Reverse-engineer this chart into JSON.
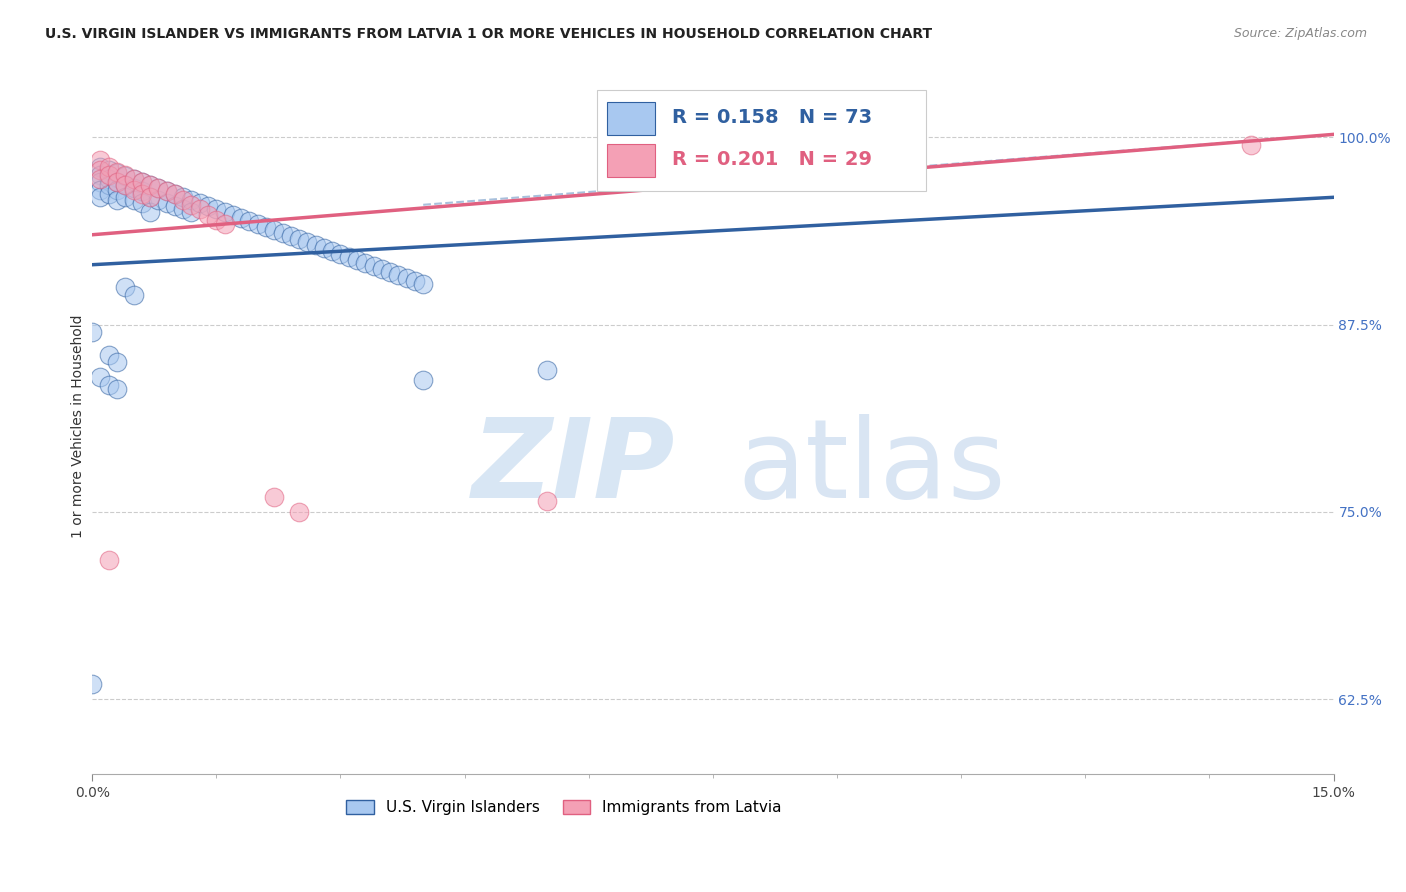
{
  "title": "U.S. VIRGIN ISLANDER VS IMMIGRANTS FROM LATVIA 1 OR MORE VEHICLES IN HOUSEHOLD CORRELATION CHART",
  "source": "Source: ZipAtlas.com",
  "ylabel": "1 or more Vehicles in Household",
  "ytick_labels": [
    "100.0%",
    "87.5%",
    "75.0%",
    "62.5%"
  ],
  "ytick_values": [
    1.0,
    0.875,
    0.75,
    0.625
  ],
  "xlim": [
    0.0,
    0.15
  ],
  "ylim": [
    0.575,
    1.04
  ],
  "color_blue": "#A8C8F0",
  "color_pink": "#F4A0B5",
  "line_color_blue": "#3060A0",
  "line_color_pink": "#E06080",
  "line_color_dashed": "#A8C0DC",
  "watermark_zip_color": "#C8DCF0",
  "watermark_atlas_color": "#C0D4EC",
  "blue_x": [
    0.001,
    0.001,
    0.001,
    0.001,
    0.001,
    0.002,
    0.002,
    0.002,
    0.002,
    0.003,
    0.003,
    0.003,
    0.003,
    0.004,
    0.004,
    0.004,
    0.005,
    0.005,
    0.005,
    0.006,
    0.006,
    0.006,
    0.007,
    0.007,
    0.007,
    0.008,
    0.008,
    0.009,
    0.009,
    0.01,
    0.01,
    0.011,
    0.011,
    0.012,
    0.012,
    0.013,
    0.014,
    0.015,
    0.016,
    0.017,
    0.018,
    0.019,
    0.02,
    0.021,
    0.022,
    0.023,
    0.024,
    0.025,
    0.026,
    0.027,
    0.028,
    0.029,
    0.03,
    0.031,
    0.032,
    0.033,
    0.034,
    0.035,
    0.036,
    0.037,
    0.038,
    0.039,
    0.04,
    0.001,
    0.002,
    0.003,
    0.0,
    0.0,
    0.055,
    0.04,
    0.002,
    0.003,
    0.004,
    0.005
  ],
  "blue_y": [
    0.98,
    0.975,
    0.97,
    0.965,
    0.96,
    0.978,
    0.972,
    0.968,
    0.962,
    0.976,
    0.97,
    0.965,
    0.958,
    0.974,
    0.968,
    0.96,
    0.972,
    0.966,
    0.958,
    0.97,
    0.964,
    0.956,
    0.968,
    0.96,
    0.95,
    0.966,
    0.958,
    0.964,
    0.956,
    0.962,
    0.954,
    0.96,
    0.952,
    0.958,
    0.95,
    0.956,
    0.954,
    0.952,
    0.95,
    0.948,
    0.946,
    0.944,
    0.942,
    0.94,
    0.938,
    0.936,
    0.934,
    0.932,
    0.93,
    0.928,
    0.926,
    0.924,
    0.922,
    0.92,
    0.918,
    0.916,
    0.914,
    0.912,
    0.91,
    0.908,
    0.906,
    0.904,
    0.902,
    0.84,
    0.835,
    0.832,
    0.87,
    0.635,
    0.845,
    0.838,
    0.855,
    0.85,
    0.9,
    0.895
  ],
  "pink_x": [
    0.001,
    0.001,
    0.001,
    0.002,
    0.002,
    0.003,
    0.003,
    0.004,
    0.004,
    0.005,
    0.005,
    0.006,
    0.006,
    0.007,
    0.007,
    0.008,
    0.009,
    0.01,
    0.011,
    0.012,
    0.013,
    0.014,
    0.015,
    0.016,
    0.022,
    0.055,
    0.14,
    0.025,
    0.002
  ],
  "pink_y": [
    0.985,
    0.978,
    0.972,
    0.98,
    0.975,
    0.977,
    0.97,
    0.975,
    0.968,
    0.972,
    0.965,
    0.97,
    0.962,
    0.968,
    0.96,
    0.966,
    0.964,
    0.962,
    0.958,
    0.955,
    0.952,
    0.948,
    0.945,
    0.942,
    0.76,
    0.757,
    0.995,
    0.75,
    0.718
  ],
  "blue_line_x": [
    0.0,
    0.15
  ],
  "blue_line_y": [
    0.915,
    0.96
  ],
  "pink_line_x": [
    0.0,
    0.15
  ],
  "pink_line_y": [
    0.935,
    1.002
  ],
  "dash_line_x": [
    0.04,
    0.15
  ],
  "dash_line_y": [
    0.955,
    1.002
  ]
}
